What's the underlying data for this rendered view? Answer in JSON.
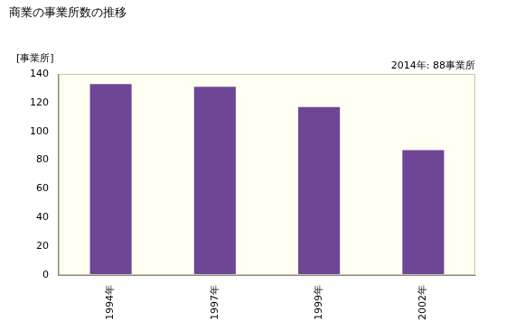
{
  "chart_data": {
    "type": "bar",
    "title": "商業の事業所数の推移",
    "y_label": "[事業所]",
    "annotation": "2014年: 88事業所",
    "categories": [
      "1994年",
      "1997年",
      "1999年",
      "2002年"
    ],
    "values": [
      133,
      131,
      117,
      87
    ],
    "color": "#6f4596",
    "ylim": [
      0,
      140
    ],
    "yticks": [
      0,
      20,
      40,
      60,
      80,
      100,
      120,
      140
    ],
    "grid": false
  }
}
